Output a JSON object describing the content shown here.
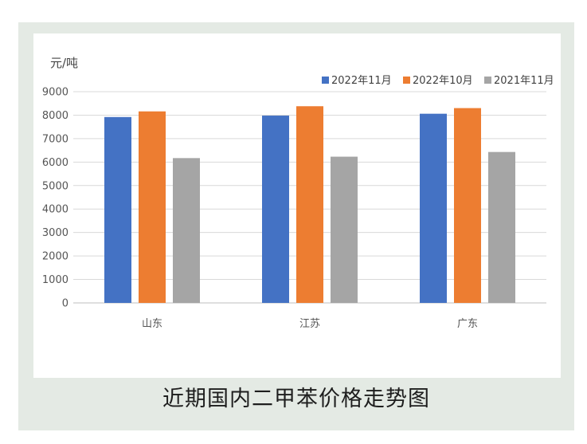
{
  "caption": "近期国内二甲苯价格走势图",
  "chart_data": {
    "type": "bar",
    "title": "",
    "ylabel": "元/吨",
    "xlabel": "",
    "ylim": [
      0,
      9000
    ],
    "ytick_step": 1000,
    "yticks": [
      "0",
      "1000",
      "2000",
      "3000",
      "4000",
      "5000",
      "6000",
      "7000",
      "8000",
      "9000"
    ],
    "categories": [
      "山东",
      "江苏",
      "广东"
    ],
    "series": [
      {
        "name": "2022年11月",
        "color": "#4472c4",
        "values": [
          7920,
          7980,
          8060
        ]
      },
      {
        "name": "2022年10月",
        "color": "#ed7d31",
        "values": [
          8160,
          8380,
          8300
        ]
      },
      {
        "name": "2021年11月",
        "color": "#a5a5a5",
        "values": [
          6170,
          6230,
          6430
        ]
      }
    ],
    "grid": true,
    "legend_position": "top-right"
  }
}
